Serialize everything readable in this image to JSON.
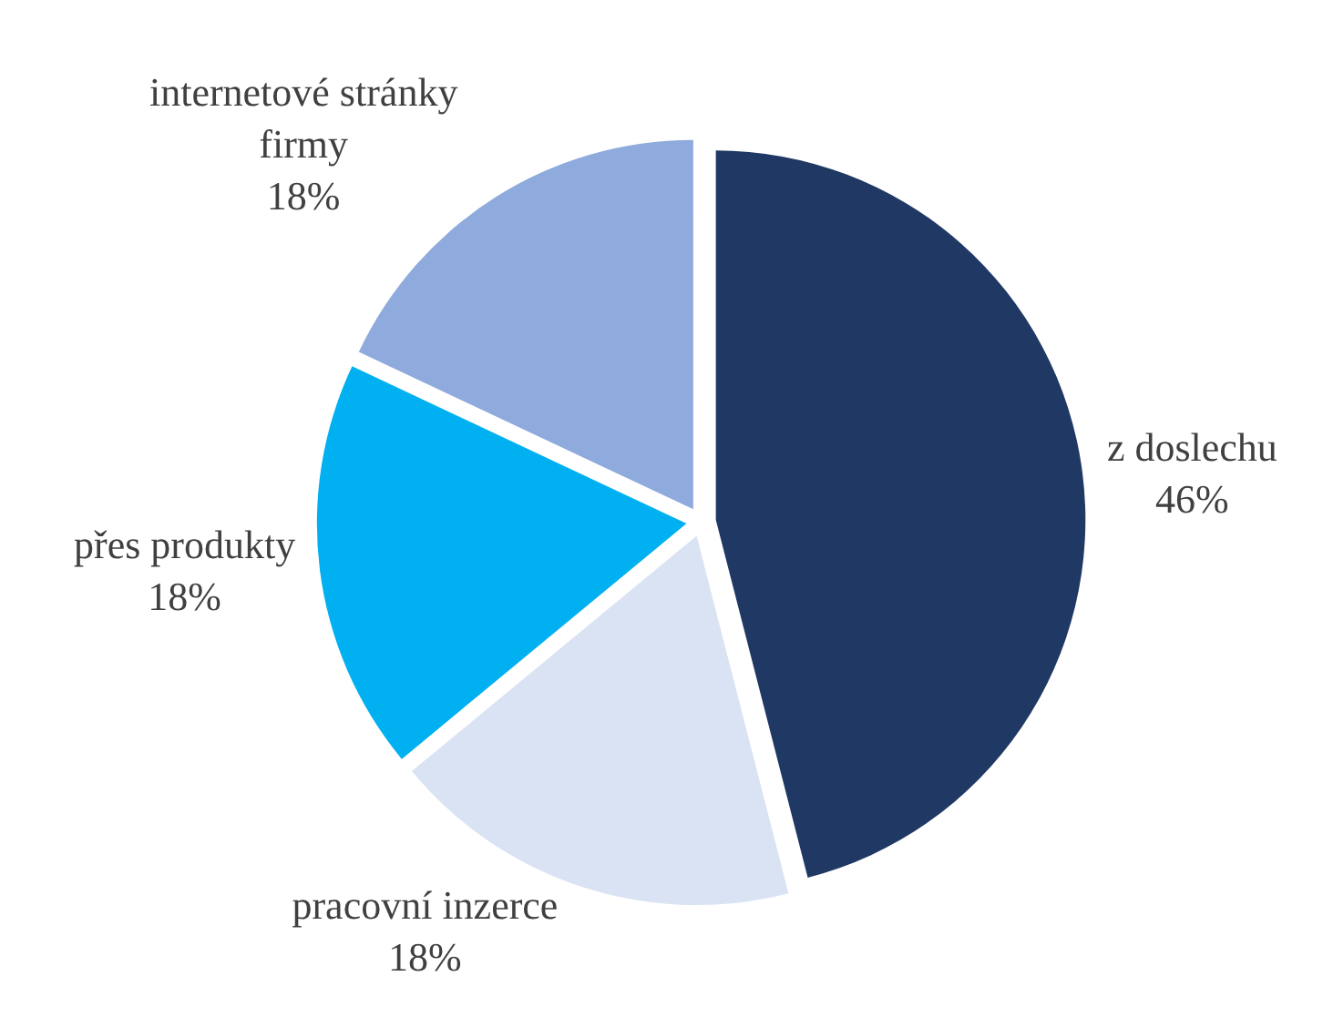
{
  "chart_data": {
    "type": "pie",
    "categories": [
      "z doslechu",
      "pracovní inzerce",
      "přes produkty",
      "internetové stránky firmy"
    ],
    "values": [
      46,
      18,
      18,
      18
    ],
    "value_labels": [
      "46%",
      "18%",
      "18%",
      "18%"
    ],
    "colors": [
      "#203864",
      "#dae3f3",
      "#00b0f0",
      "#8faadc"
    ]
  }
}
